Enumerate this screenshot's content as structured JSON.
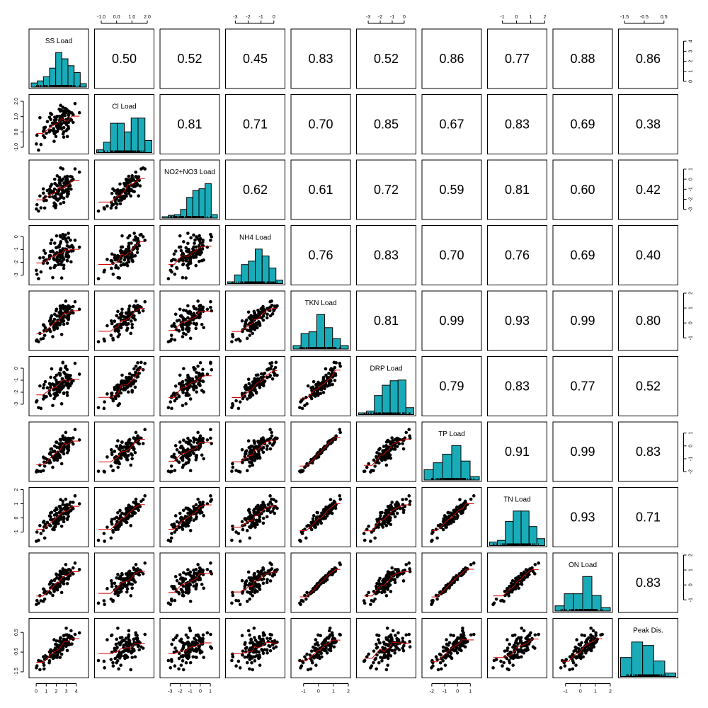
{
  "chart_data": {
    "type": "scatter-matrix",
    "variables": [
      "SS Load",
      "Cl Load",
      "NO2+NO3 Load",
      "NH4 Load",
      "TKN Load",
      "DRP Load",
      "TP Load",
      "TN Load",
      "ON Load",
      "Peak Dis."
    ],
    "correlations": [
      [
        null,
        0.5,
        0.52,
        0.45,
        0.83,
        0.52,
        0.86,
        0.77,
        0.88,
        0.86
      ],
      [
        0.5,
        null,
        0.81,
        0.71,
        0.7,
        0.85,
        0.67,
        0.83,
        0.69,
        0.38
      ],
      [
        0.52,
        0.81,
        null,
        0.62,
        0.61,
        0.72,
        0.59,
        0.81,
        0.6,
        0.42
      ],
      [
        0.45,
        0.71,
        0.62,
        null,
        0.76,
        0.83,
        0.7,
        0.76,
        0.69,
        0.4
      ],
      [
        0.83,
        0.7,
        0.61,
        0.76,
        null,
        0.81,
        0.99,
        0.93,
        0.99,
        0.8
      ],
      [
        0.52,
        0.85,
        0.72,
        0.83,
        0.81,
        null,
        0.79,
        0.83,
        0.77,
        0.52
      ],
      [
        0.86,
        0.67,
        0.59,
        0.7,
        0.99,
        0.79,
        null,
        0.91,
        0.99,
        0.83
      ],
      [
        0.77,
        0.83,
        0.81,
        0.76,
        0.93,
        0.83,
        0.91,
        null,
        0.93,
        0.71
      ],
      [
        0.88,
        0.69,
        0.6,
        0.69,
        0.99,
        0.77,
        0.99,
        0.93,
        null,
        0.83
      ],
      [
        0.86,
        0.38,
        0.42,
        0.4,
        0.8,
        0.52,
        0.83,
        0.71,
        0.83,
        null
      ]
    ],
    "correlation_labels": [
      [
        null,
        "0.50",
        "0.52",
        "0.45",
        "0.83",
        "0.52",
        "0.86",
        "0.77",
        "0.88",
        "0.86"
      ],
      [
        null,
        null,
        "0.81",
        "0.71",
        "0.70",
        "0.85",
        "0.67",
        "0.83",
        "0.69",
        "0.38"
      ],
      [
        null,
        null,
        null,
        "0.62",
        "0.61",
        "0.72",
        "0.59",
        "0.81",
        "0.60",
        "0.42"
      ],
      [
        null,
        null,
        null,
        null,
        "0.76",
        "0.83",
        "0.70",
        "0.76",
        "0.69",
        "0.40"
      ],
      [
        null,
        null,
        null,
        null,
        null,
        "0.81",
        "0.99",
        "0.93",
        "0.99",
        "0.80"
      ],
      [
        null,
        null,
        null,
        null,
        null,
        null,
        "0.79",
        "0.83",
        "0.77",
        "0.52"
      ],
      [
        null,
        null,
        null,
        null,
        null,
        null,
        null,
        "0.91",
        "0.99",
        "0.83"
      ],
      [
        null,
        null,
        null,
        null,
        null,
        null,
        null,
        null,
        "0.93",
        "0.71"
      ],
      [
        null,
        null,
        null,
        null,
        null,
        null,
        null,
        null,
        null,
        "0.83"
      ],
      [
        null,
        null,
        null,
        null,
        null,
        null,
        null,
        null,
        null,
        null
      ]
    ],
    "ranges": [
      [
        -0.5,
        5.0
      ],
      [
        -1.3,
        2.3
      ],
      [
        -3.8,
        1.7
      ],
      [
        -3.6,
        0.7
      ],
      [
        -1.7,
        2.0
      ],
      [
        -3.8,
        0.8
      ],
      [
        -2.6,
        1.7
      ],
      [
        -1.9,
        2.0
      ],
      [
        -1.7,
        2.0
      ],
      [
        -1.7,
        1.1
      ]
    ],
    "ticks": [
      [
        "0",
        "1",
        "2",
        "3",
        "4"
      ],
      [
        "-1.0",
        "0.0",
        "1.0",
        "2.0"
      ],
      [
        "-3",
        "-2",
        "-1",
        "0",
        "1"
      ],
      [
        "-3",
        "-2",
        "-1",
        "0"
      ],
      [
        "-1",
        "0",
        "1",
        "2"
      ],
      [
        "-3",
        "-2",
        "-1",
        "0"
      ],
      [
        "-2",
        "-1",
        "0",
        "1"
      ],
      [
        "-1",
        "0",
        "1",
        "2"
      ],
      [
        "-1",
        "0",
        "1",
        "2"
      ],
      [
        "-1.5",
        "-0.5",
        "0.5"
      ]
    ],
    "axes": {
      "top": [
        1,
        3,
        5,
        7,
        9
      ],
      "bottom": [
        0,
        2,
        4,
        6,
        8
      ],
      "left": [
        1,
        3,
        5,
        7,
        9
      ],
      "right": [
        0,
        2,
        4,
        6,
        8
      ]
    },
    "histograms": [
      [
        0.12,
        0.18,
        0.3,
        0.55,
        1.0,
        0.82,
        0.62,
        0.42,
        0.1
      ],
      [
        0.08,
        0.3,
        0.85,
        0.85,
        0.6,
        1.0,
        1.0,
        0.35
      ],
      [
        0.04,
        0.08,
        0.1,
        0.25,
        0.6,
        0.8,
        0.85,
        1.0,
        0.1
      ],
      [
        0.05,
        0.25,
        0.55,
        0.65,
        1.0,
        0.8,
        0.45,
        0.1
      ],
      [
        0.1,
        0.45,
        0.5,
        1.0,
        0.62,
        0.3,
        0.1
      ],
      [
        0.05,
        0.1,
        0.55,
        0.85,
        0.98,
        1.0,
        0.2
      ],
      [
        0.3,
        0.5,
        0.75,
        1.0,
        0.55,
        0.1
      ],
      [
        0.1,
        0.15,
        0.7,
        1.0,
        1.0,
        0.55,
        0.2
      ],
      [
        0.15,
        0.5,
        0.5,
        1.0,
        0.45,
        0.1
      ],
      [
        0.55,
        1.0,
        0.9,
        0.45,
        0.1
      ]
    ],
    "histogram_color": "#1aabb8",
    "smoother_color": "#d00000",
    "point_color": "#000000",
    "n_points": 110
  }
}
